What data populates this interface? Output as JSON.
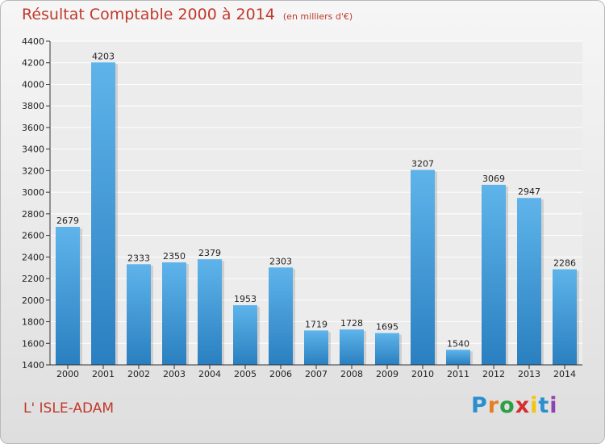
{
  "title": "Résultat Comptable 2000 à 2014",
  "subtitle": "(en milliers d'€)",
  "commune": "L' ISLE-ADAM",
  "logo": {
    "letters": [
      "P",
      "r",
      "o",
      "x",
      "i",
      "t",
      "i"
    ],
    "colors": [
      "#2a8fd0",
      "#e67e22",
      "#2e9e44",
      "#d32f2f",
      "#f1c40f",
      "#2a8fd0",
      "#8e44ad"
    ]
  },
  "colors": {
    "bar_light": "#5eb4ea",
    "bar_dark": "#2a7fc0",
    "plot_bg": "#ececec",
    "title": "#c0392b"
  },
  "chart_data": {
    "type": "bar",
    "categories": [
      "2000",
      "2001",
      "2002",
      "2003",
      "2004",
      "2005",
      "2006",
      "2007",
      "2008",
      "2009",
      "2010",
      "2011",
      "2012",
      "2013",
      "2014"
    ],
    "values": [
      2679,
      4203,
      2333,
      2350,
      2379,
      1953,
      2303,
      1719,
      1728,
      1695,
      3207,
      1540,
      3069,
      2947,
      2286
    ],
    "ylim": [
      1400,
      4400
    ],
    "yticks": [
      1400,
      1600,
      1800,
      2000,
      2200,
      2400,
      2600,
      2800,
      3000,
      3200,
      3400,
      3600,
      3800,
      4000,
      4200,
      4400
    ],
    "grid": true
  }
}
